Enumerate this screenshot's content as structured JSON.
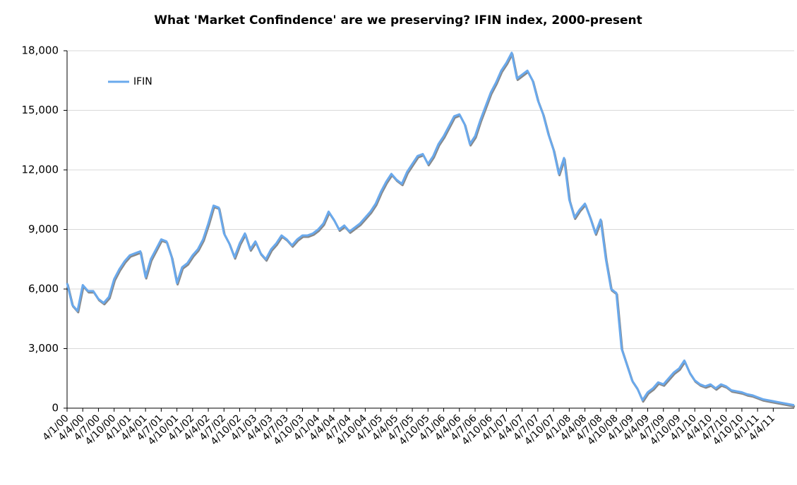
{
  "chart_data": {
    "type": "line",
    "title": "What 'Market Confindence' are we preserving? IFIN index, 2000-present",
    "categories": [
      "4/1/00",
      null,
      null,
      "4/4/00",
      null,
      null,
      "4/7/00",
      null,
      null,
      "4/10/00",
      null,
      null,
      "4/1/01",
      null,
      null,
      "4/4/01",
      null,
      null,
      "4/7/01",
      null,
      null,
      "4/10/01",
      null,
      null,
      "4/1/02",
      null,
      null,
      "4/4/02",
      null,
      null,
      "4/7/02",
      null,
      null,
      "4/10/02",
      null,
      null,
      "4/1/03",
      null,
      null,
      "4/4/03",
      null,
      null,
      "4/7/03",
      null,
      null,
      "4/10/03",
      null,
      null,
      "4/1/04",
      null,
      null,
      "4/4/04",
      null,
      null,
      "4/7/04",
      null,
      null,
      "4/10/04",
      null,
      null,
      "4/1/05",
      null,
      null,
      "4/4/05",
      null,
      null,
      "4/7/05",
      null,
      null,
      "4/10/05",
      null,
      null,
      "4/1/06",
      null,
      null,
      "4/4/06",
      null,
      null,
      "4/7/06",
      null,
      null,
      "4/10/06",
      null,
      null,
      "4/1/07",
      null,
      null,
      "4/4/07",
      null,
      null,
      "4/7/07",
      null,
      null,
      "4/10/07",
      null,
      null,
      "4/1/08",
      null,
      null,
      "4/4/08",
      null,
      null,
      "4/7/08",
      null,
      null,
      "4/10/08",
      null,
      null,
      "4/1/09",
      null,
      null,
      "4/4/09",
      null,
      null,
      "4/7/09",
      null,
      null,
      "4/10/09",
      null,
      null,
      "4/1/10",
      null,
      null,
      "4/4/10",
      null,
      null,
      "4/7/10",
      null,
      null,
      "4/10/10",
      null,
      null,
      "4/1/11",
      null,
      null,
      "4/4/11",
      null,
      null,
      null,
      null
    ],
    "series": [
      {
        "name": "IFIN",
        "color": "#6aa9ec",
        "values": [
          6300,
          5200,
          4900,
          6200,
          5900,
          5900,
          5500,
          5300,
          5600,
          6500,
          7000,
          7400,
          7700,
          7800,
          7900,
          6600,
          7500,
          8000,
          8500,
          8400,
          7600,
          6300,
          7100,
          7300,
          7700,
          8000,
          8500,
          9300,
          10200,
          10100,
          8800,
          8300,
          7600,
          8300,
          8800,
          8000,
          8400,
          7800,
          7500,
          8000,
          8300,
          8700,
          8500,
          8200,
          8500,
          8700,
          8700,
          8800,
          9000,
          9300,
          9900,
          9500,
          9000,
          9200,
          8900,
          9100,
          9300,
          9600,
          9900,
          10300,
          10900,
          11400,
          11800,
          11500,
          11300,
          11900,
          12300,
          12700,
          12800,
          12300,
          12700,
          13300,
          13700,
          14200,
          14700,
          14800,
          14300,
          13300,
          13700,
          14500,
          15200,
          15900,
          16400,
          17000,
          17400,
          17900,
          16600,
          16800,
          17000,
          16500,
          15500,
          14800,
          13800,
          13000,
          11800,
          12600,
          10500,
          9600,
          10000,
          10300,
          9600,
          8800,
          9500,
          7500,
          6000,
          5800,
          3000,
          2200,
          1400,
          1000,
          400,
          800,
          1000,
          1300,
          1200,
          1500,
          1800,
          2000,
          2400,
          1800,
          1400,
          1200,
          1100,
          1200,
          1000,
          1200,
          1100,
          900,
          850,
          800,
          700,
          650,
          550,
          450,
          400,
          350,
          300,
          250,
          200,
          150
        ]
      }
    ],
    "ylim": [
      0,
      18000
    ],
    "yticks": [
      0,
      {
        "value": 3000,
        "label": "3,000"
      },
      {
        "value": 6000,
        "label": "6,000"
      },
      {
        "value": 9000,
        "label": "9,000"
      },
      {
        "value": 12000,
        "label": "12,000"
      },
      {
        "value": 15000,
        "label": "15,000"
      },
      {
        "value": 18000,
        "label": "18,000"
      }
    ],
    "grid": true,
    "legend": "upper left"
  }
}
